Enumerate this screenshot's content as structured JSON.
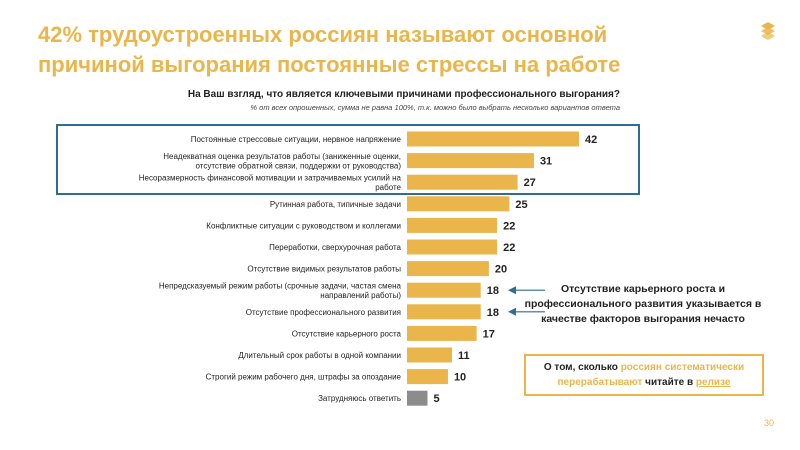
{
  "header": {
    "title": "42% трудоустроенных россиян называют основной причиной выгорания постоянные стрессы на работе"
  },
  "question": {
    "text": "На Ваш взгляд, что является ключевыми причинами профессионального выгорания?",
    "note": "% от всех опрошенных, сумма не равна 100%, т.к. можно было выбрать несколько вариантов ответа"
  },
  "chart_data": {
    "type": "bar",
    "orientation": "horizontal",
    "categories": [
      "Постоянные стрессовые ситуации, нервное напряжение",
      "Неадекватная оценка результатов работы (заниженные оценки, отсутствие обратной связи, поддержки от руководства)",
      "Несоразмерность финансовой мотивации и затрачиваемых усилий на работе",
      "Рутинная работа, типичные задачи",
      "Конфликтные ситуации с руководством и коллегами",
      "Переработки, сверхурочная работа",
      "Отсутствие видимых результатов работы",
      "Непредсказуемый режим работы (срочные задачи, частая смена направлений работы)",
      "Отсутствие профессионального развития",
      "Отсутствие карьерного роста",
      "Длительный срок работы в одной компании",
      "Строгий режим рабочего дня, штрафы за опоздание",
      "Затрудняюсь ответить"
    ],
    "category_lines": [
      [
        "Постоянные стрессовые ситуации, нервное напряжение"
      ],
      [
        "Неадекватная оценка результатов работы (заниженные оценки,",
        "отсутствие обратной связи, поддержки от руководства)"
      ],
      [
        "Несоразмерность финансовой мотивации и затрачиваемых усилий на",
        "работе"
      ],
      [
        "Рутинная работа, типичные задачи"
      ],
      [
        "Конфликтные ситуации с руководством и коллегами"
      ],
      [
        "Переработки, сверхурочная работа"
      ],
      [
        "Отсутствие видимых результатов работы"
      ],
      [
        "Непредсказуемый режим работы (срочные задачи, частая смена",
        "направлений работы)"
      ],
      [
        "Отсутствие профессионального развития"
      ],
      [
        "Отсутствие карьерного роста"
      ],
      [
        "Длительный срок работы в одной компании"
      ],
      [
        "Строгий режим рабочего дня, штрафы за опоздание"
      ],
      [
        "Затрудняюсь ответить"
      ]
    ],
    "values": [
      42,
      31,
      27,
      25,
      22,
      22,
      20,
      18,
      18,
      17,
      11,
      10,
      5
    ],
    "highlighted_top": 3,
    "arrow_rows": [
      7,
      8
    ],
    "colors": {
      "bar": "#eab54a",
      "bar_other": "#8c8c8c"
    },
    "xlim": [
      0,
      42
    ]
  },
  "side_note": {
    "text": "Отсутствие карьерного роста и профессионального развития указывается в качестве факторов выгорания нечасто"
  },
  "callout": {
    "part1": "О том, сколько ",
    "part2": "россиян систематически перерабатывают",
    "part3": " читайте в ",
    "link": "релизе"
  },
  "footer": {
    "page": "30"
  },
  "colors": {
    "accent": "#eab54a",
    "box": "#2f6e8c",
    "arrow": "#2f6e8c"
  }
}
